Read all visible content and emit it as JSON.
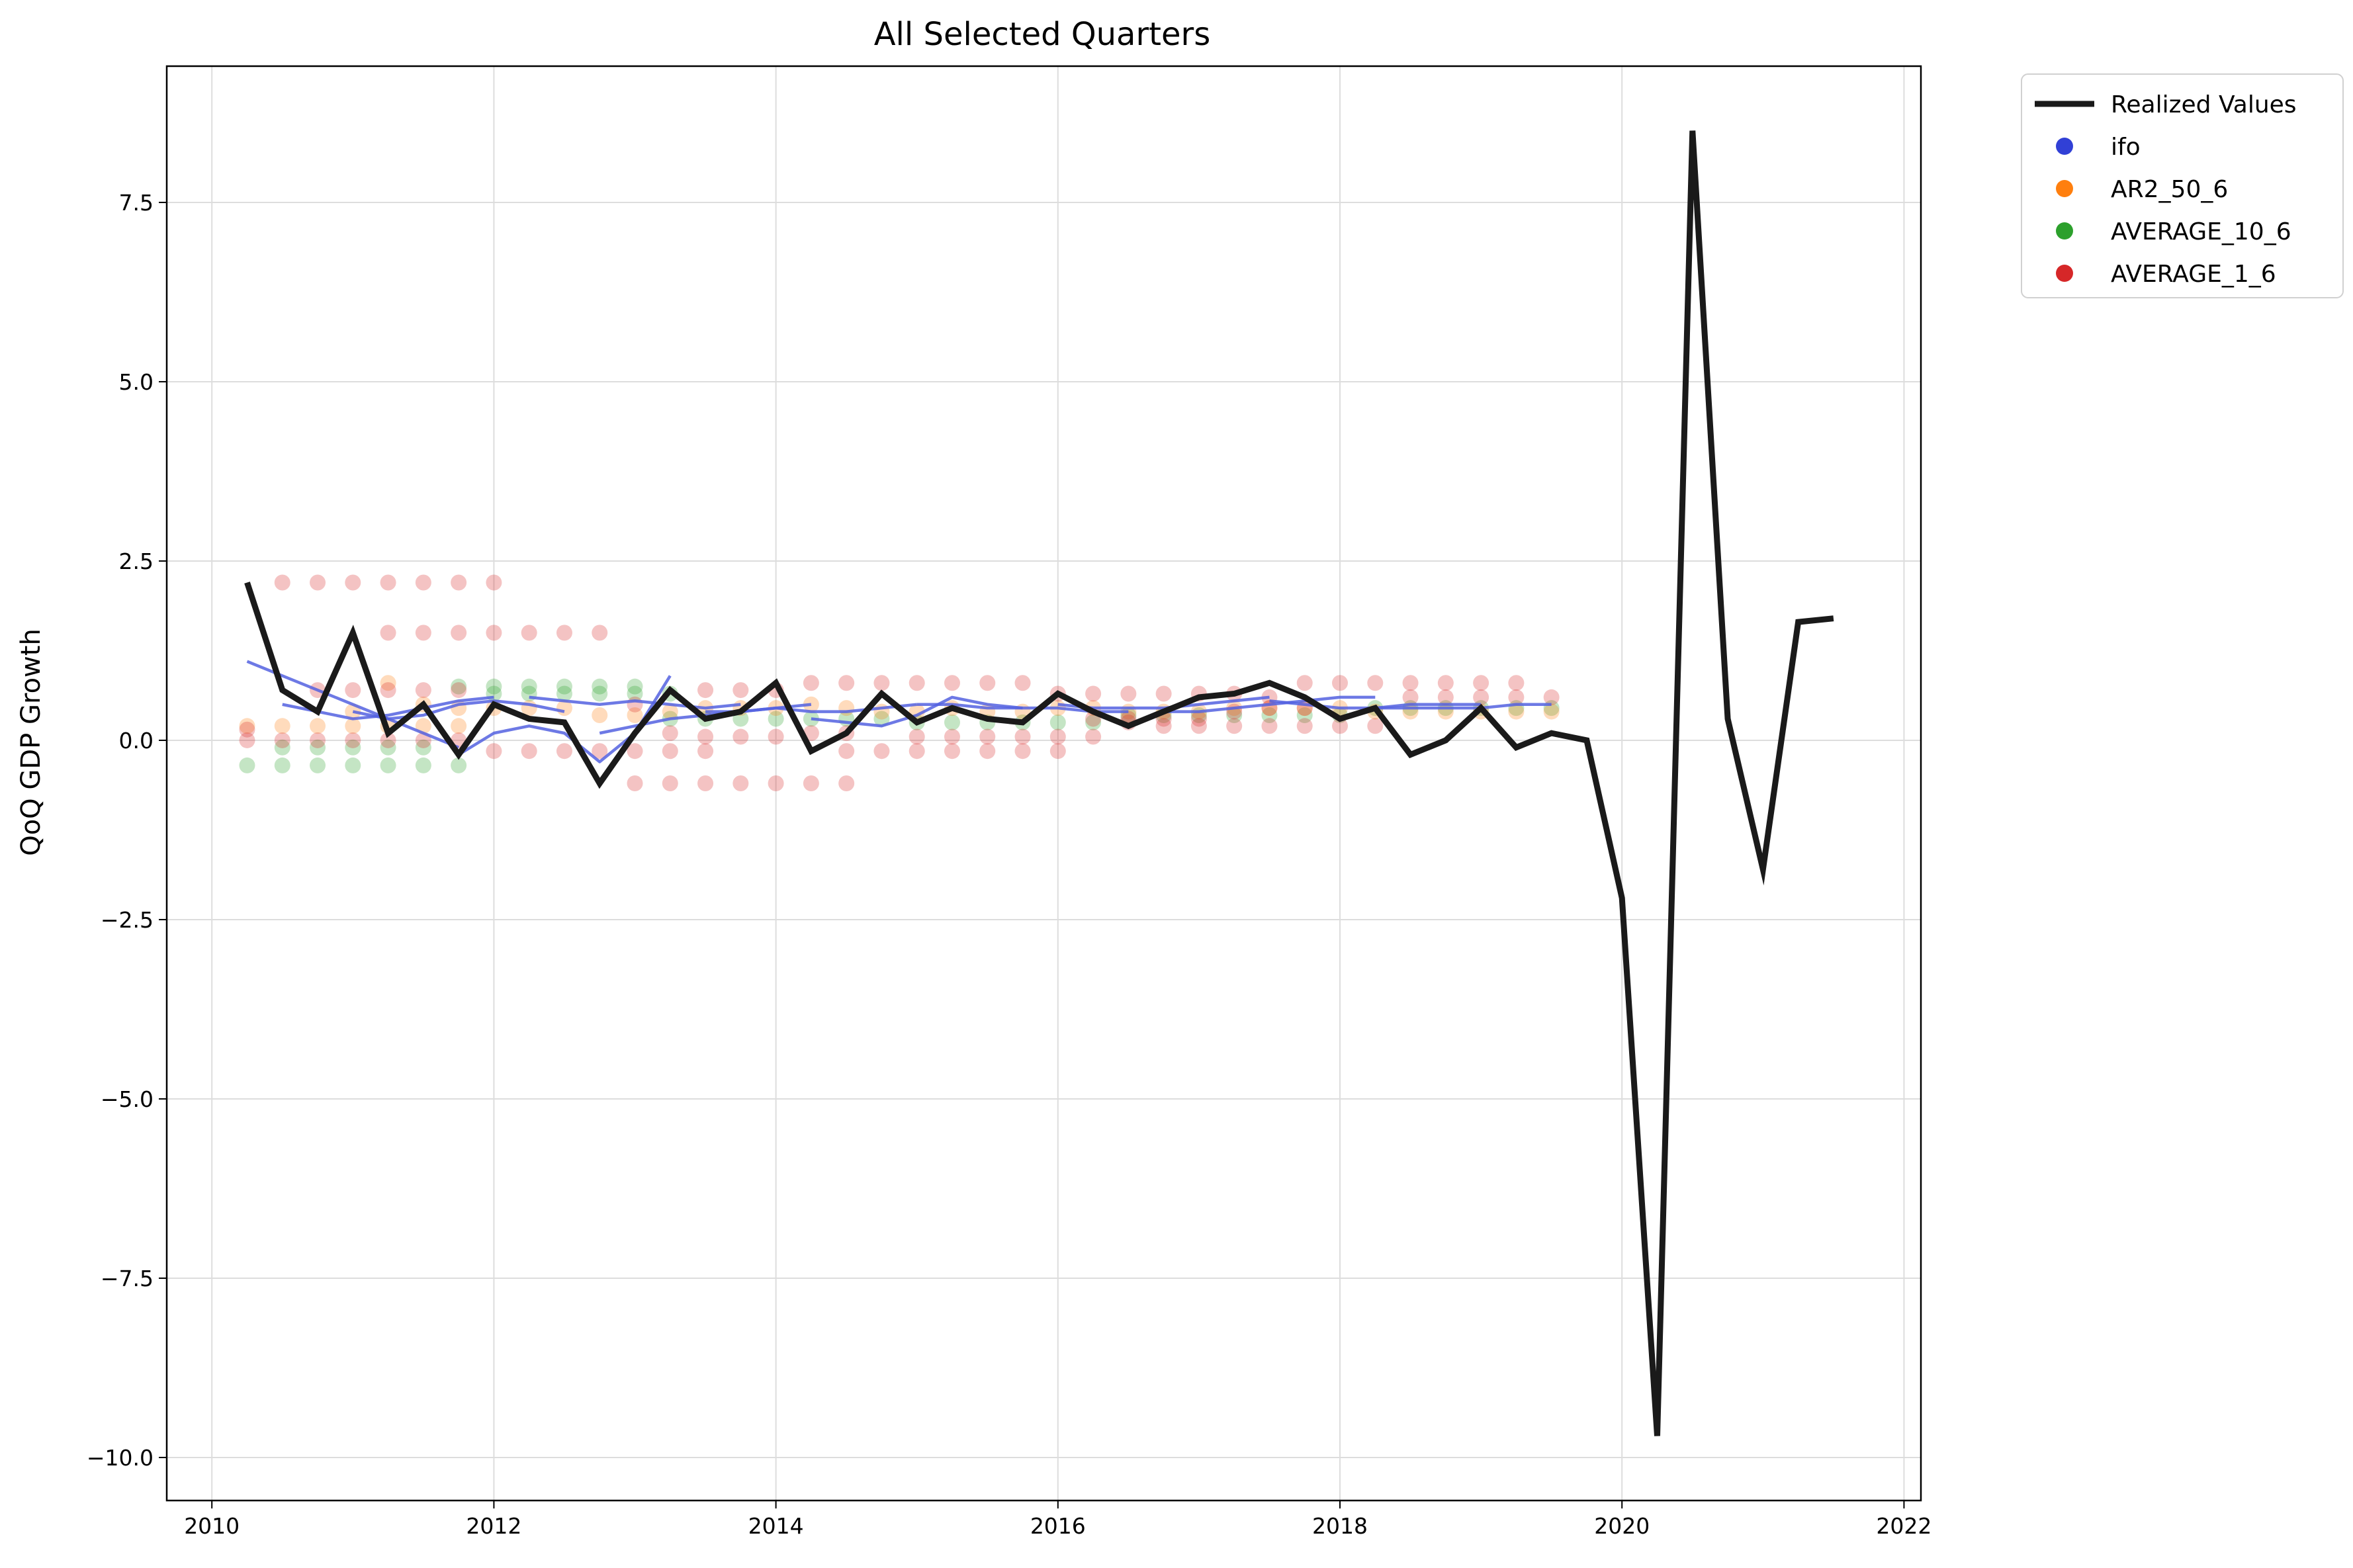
{
  "chart_data": {
    "type": "line",
    "title": "All Selected Quarters",
    "xlabel": "",
    "ylabel": "QoQ GDP Growth",
    "xlim": [
      2009.68,
      2022.12
    ],
    "ylim": [
      -10.6,
      9.4
    ],
    "x_ticks": [
      2010,
      2012,
      2014,
      2016,
      2018,
      2020,
      2022
    ],
    "y_ticks": [
      7.5,
      5.0,
      2.5,
      0.0,
      -2.5,
      -5.0,
      -7.5,
      -10.0
    ],
    "y_tick_labels": [
      "7.5",
      "5.0",
      "2.5",
      "0.0",
      "−2.5",
      "−5.0",
      "−7.5",
      "−10.0"
    ],
    "grid": true,
    "legend_position": "outside-top-right",
    "colors": {
      "realized": "#1a1a1a",
      "ifo": "#3140d6",
      "ifo_line": "#5461e0",
      "AR2_50_6": "#ff7f0e",
      "AVERAGE_10_6": "#2ca02c",
      "AVERAGE_1_6": "#d62728",
      "grid": "#dddddd"
    },
    "legend": [
      {
        "name": "Realized Values",
        "kind": "line",
        "color": "#1a1a1a"
      },
      {
        "name": "ifo",
        "kind": "marker",
        "color": "#3140d6"
      },
      {
        "name": "AR2_50_6",
        "kind": "marker",
        "color": "#ff7f0e"
      },
      {
        "name": "AVERAGE_10_6",
        "kind": "marker",
        "color": "#2ca02c"
      },
      {
        "name": "AVERAGE_1_6",
        "kind": "marker",
        "color": "#d62728"
      }
    ],
    "realized": {
      "name": "Realized Values",
      "x": [
        2010.25,
        2010.5,
        2010.75,
        2011.0,
        2011.25,
        2011.5,
        2011.75,
        2012.0,
        2012.25,
        2012.5,
        2012.75,
        2013.0,
        2013.25,
        2013.5,
        2013.75,
        2014.0,
        2014.25,
        2014.5,
        2014.75,
        2015.0,
        2015.25,
        2015.5,
        2015.75,
        2016.0,
        2016.25,
        2016.5,
        2016.75,
        2017.0,
        2017.25,
        2017.5,
        2017.75,
        2018.0,
        2018.25,
        2018.5,
        2018.75,
        2019.0,
        2019.25,
        2019.5,
        2019.75,
        2020.0,
        2020.25,
        2020.5,
        2020.75,
        2021.0,
        2021.25,
        2021.5
      ],
      "y": [
        2.2,
        0.7,
        0.4,
        1.5,
        0.1,
        0.5,
        -0.2,
        0.5,
        0.3,
        0.25,
        -0.6,
        0.1,
        0.7,
        0.3,
        0.4,
        0.8,
        -0.15,
        0.1,
        0.65,
        0.25,
        0.45,
        0.3,
        0.25,
        0.65,
        0.4,
        0.2,
        0.4,
        0.6,
        0.65,
        0.8,
        0.6,
        0.3,
        0.45,
        -0.2,
        0.0,
        0.45,
        -0.1,
        0.1,
        0.0,
        -2.2,
        -9.7,
        8.5,
        0.3,
        -1.8,
        1.65,
        1.7
      ]
    },
    "ifo_paths": [
      {
        "x": [
          2010.25,
          2010.5,
          2010.75,
          2011.0,
          2011.25,
          2011.5,
          2011.75
        ],
        "y": [
          1.1,
          0.9,
          0.7,
          0.5,
          0.3,
          0.1,
          -0.1
        ]
      },
      {
        "x": [
          2010.5,
          2010.75,
          2011.0,
          2011.25,
          2011.5,
          2011.75,
          2012.0
        ],
        "y": [
          0.5,
          0.4,
          0.3,
          0.35,
          0.45,
          0.55,
          0.6
        ]
      },
      {
        "x": [
          2011.0,
          2011.25,
          2011.5,
          2011.75,
          2012.0,
          2012.25,
          2012.5
        ],
        "y": [
          0.4,
          0.3,
          0.35,
          0.5,
          0.55,
          0.5,
          0.4
        ]
      },
      {
        "x": [
          2011.75,
          2012.0,
          2012.25,
          2012.5,
          2012.75,
          2013.0,
          2013.25
        ],
        "y": [
          -0.2,
          0.1,
          0.2,
          0.1,
          -0.3,
          0.1,
          0.9
        ]
      },
      {
        "x": [
          2012.25,
          2012.5,
          2012.75,
          2013.0,
          2013.25,
          2013.5,
          2013.75
        ],
        "y": [
          0.6,
          0.55,
          0.5,
          0.55,
          0.5,
          0.45,
          0.5
        ]
      },
      {
        "x": [
          2012.75,
          2013.0,
          2013.25,
          2013.5,
          2013.75,
          2014.0,
          2014.25
        ],
        "y": [
          0.1,
          0.2,
          0.3,
          0.35,
          0.4,
          0.45,
          0.5
        ]
      },
      {
        "x": [
          2013.5,
          2013.75,
          2014.0,
          2014.25,
          2014.5,
          2014.75,
          2015.0
        ],
        "y": [
          0.4,
          0.4,
          0.45,
          0.4,
          0.4,
          0.45,
          0.5
        ]
      },
      {
        "x": [
          2014.25,
          2014.5,
          2014.75,
          2015.0,
          2015.25,
          2015.5,
          2015.75
        ],
        "y": [
          0.3,
          0.25,
          0.2,
          0.35,
          0.6,
          0.5,
          0.45
        ]
      },
      {
        "x": [
          2015.0,
          2015.25,
          2015.5,
          2015.75,
          2016.0,
          2016.25,
          2016.5
        ],
        "y": [
          0.5,
          0.5,
          0.45,
          0.45,
          0.45,
          0.4,
          0.4
        ]
      },
      {
        "x": [
          2016.0,
          2016.25,
          2016.5,
          2016.75,
          2017.0,
          2017.25,
          2017.5
        ],
        "y": [
          0.5,
          0.45,
          0.45,
          0.45,
          0.5,
          0.55,
          0.6
        ]
      },
      {
        "x": [
          2016.75,
          2017.0,
          2017.25,
          2017.5,
          2017.75,
          2018.0,
          2018.25
        ],
        "y": [
          0.4,
          0.4,
          0.45,
          0.5,
          0.55,
          0.6,
          0.6
        ]
      },
      {
        "x": [
          2017.5,
          2017.75,
          2018.0,
          2018.25,
          2018.5,
          2018.75,
          2019.0
        ],
        "y": [
          0.55,
          0.5,
          0.45,
          0.45,
          0.5,
          0.5,
          0.5
        ]
      },
      {
        "x": [
          2018.25,
          2018.5,
          2018.75,
          2019.0,
          2019.25,
          2019.5
        ],
        "y": [
          0.45,
          0.45,
          0.45,
          0.45,
          0.5,
          0.5
        ]
      }
    ],
    "scatter_series": [
      {
        "name": "AVERAGE_10_6",
        "color": "#2ca02c",
        "points": [
          [
            2010.25,
            -0.35
          ],
          [
            2010.5,
            -0.35
          ],
          [
            2010.75,
            -0.35
          ],
          [
            2011.0,
            -0.35
          ],
          [
            2011.25,
            -0.35
          ],
          [
            2011.5,
            -0.35
          ],
          [
            2011.75,
            -0.35
          ],
          [
            2010.5,
            -0.1
          ],
          [
            2010.75,
            -0.1
          ],
          [
            2011.0,
            -0.1
          ],
          [
            2011.25,
            -0.1
          ],
          [
            2011.5,
            -0.1
          ],
          [
            2011.75,
            0.75
          ],
          [
            2012.0,
            0.75
          ],
          [
            2012.25,
            0.75
          ],
          [
            2012.5,
            0.75
          ],
          [
            2012.75,
            0.75
          ],
          [
            2013.0,
            0.75
          ],
          [
            2012.0,
            0.65
          ],
          [
            2012.25,
            0.65
          ],
          [
            2012.5,
            0.65
          ],
          [
            2012.75,
            0.65
          ],
          [
            2013.0,
            0.65
          ],
          [
            2013.25,
            0.65
          ],
          [
            2013.25,
            0.3
          ],
          [
            2013.5,
            0.3
          ],
          [
            2013.75,
            0.3
          ],
          [
            2014.0,
            0.3
          ],
          [
            2014.25,
            0.3
          ],
          [
            2014.5,
            0.3
          ],
          [
            2014.75,
            0.3
          ],
          [
            2015.0,
            0.25
          ],
          [
            2015.25,
            0.25
          ],
          [
            2015.5,
            0.25
          ],
          [
            2015.75,
            0.25
          ],
          [
            2016.0,
            0.25
          ],
          [
            2016.25,
            0.25
          ],
          [
            2016.5,
            0.35
          ],
          [
            2016.75,
            0.35
          ],
          [
            2017.0,
            0.35
          ],
          [
            2017.25,
            0.35
          ],
          [
            2017.5,
            0.35
          ],
          [
            2017.75,
            0.35
          ],
          [
            2018.0,
            0.35
          ],
          [
            2018.25,
            0.45
          ],
          [
            2018.5,
            0.45
          ],
          [
            2018.75,
            0.45
          ],
          [
            2019.0,
            0.45
          ],
          [
            2019.25,
            0.45
          ],
          [
            2019.5,
            0.45
          ]
        ]
      },
      {
        "name": "AR2_50_6",
        "color": "#ff7f0e",
        "points": [
          [
            2010.25,
            0.2
          ],
          [
            2010.5,
            0.2
          ],
          [
            2010.75,
            0.2
          ],
          [
            2011.0,
            0.2
          ],
          [
            2011.25,
            0.2
          ],
          [
            2011.5,
            0.2
          ],
          [
            2011.75,
            0.2
          ],
          [
            2011.0,
            0.4
          ],
          [
            2011.25,
            0.8
          ],
          [
            2011.5,
            0.5
          ],
          [
            2011.75,
            0.45
          ],
          [
            2012.0,
            0.45
          ],
          [
            2012.25,
            0.45
          ],
          [
            2012.5,
            0.45
          ],
          [
            2012.75,
            0.35
          ],
          [
            2013.0,
            0.35
          ],
          [
            2013.25,
            0.4
          ],
          [
            2013.5,
            0.45
          ],
          [
            2013.75,
            0.45
          ],
          [
            2014.0,
            0.45
          ],
          [
            2014.25,
            0.5
          ],
          [
            2014.5,
            0.45
          ],
          [
            2014.75,
            0.4
          ],
          [
            2015.0,
            0.4
          ],
          [
            2015.25,
            0.45
          ],
          [
            2015.5,
            0.4
          ],
          [
            2015.75,
            0.4
          ],
          [
            2016.0,
            0.45
          ],
          [
            2016.25,
            0.45
          ],
          [
            2016.5,
            0.4
          ],
          [
            2016.75,
            0.4
          ],
          [
            2017.0,
            0.4
          ],
          [
            2017.25,
            0.45
          ],
          [
            2017.5,
            0.45
          ],
          [
            2017.75,
            0.45
          ],
          [
            2018.0,
            0.45
          ],
          [
            2018.25,
            0.4
          ],
          [
            2018.5,
            0.4
          ],
          [
            2018.75,
            0.4
          ],
          [
            2019.0,
            0.4
          ],
          [
            2019.25,
            0.4
          ],
          [
            2019.5,
            0.4
          ]
        ]
      },
      {
        "name": "AVERAGE_1_6",
        "color": "#d62728",
        "points": [
          [
            2010.25,
            0.0
          ],
          [
            2010.25,
            0.15
          ],
          [
            2010.5,
            2.2
          ],
          [
            2010.75,
            2.2
          ],
          [
            2011.0,
            2.2
          ],
          [
            2011.25,
            2.2
          ],
          [
            2011.5,
            2.2
          ],
          [
            2011.75,
            2.2
          ],
          [
            2012.0,
            2.2
          ],
          [
            2010.5,
            0.0
          ],
          [
            2010.75,
            0.0
          ],
          [
            2011.0,
            0.0
          ],
          [
            2011.25,
            0.0
          ],
          [
            2011.5,
            0.0
          ],
          [
            2011.75,
            0.0
          ],
          [
            2010.75,
            0.7
          ],
          [
            2011.0,
            0.7
          ],
          [
            2011.25,
            0.7
          ],
          [
            2011.5,
            0.7
          ],
          [
            2011.75,
            0.7
          ],
          [
            2011.25,
            1.5
          ],
          [
            2011.5,
            1.5
          ],
          [
            2011.75,
            1.5
          ],
          [
            2012.0,
            1.5
          ],
          [
            2012.25,
            1.5
          ],
          [
            2012.5,
            1.5
          ],
          [
            2012.75,
            1.5
          ],
          [
            2012.0,
            -0.15
          ],
          [
            2012.25,
            -0.15
          ],
          [
            2012.5,
            -0.15
          ],
          [
            2012.75,
            -0.15
          ],
          [
            2013.0,
            -0.15
          ],
          [
            2013.25,
            -0.15
          ],
          [
            2013.5,
            -0.15
          ],
          [
            2013.0,
            -0.6
          ],
          [
            2013.25,
            -0.6
          ],
          [
            2013.5,
            -0.6
          ],
          [
            2013.75,
            -0.6
          ],
          [
            2014.0,
            -0.6
          ],
          [
            2014.25,
            -0.6
          ],
          [
            2014.5,
            -0.6
          ],
          [
            2013.0,
            0.5
          ],
          [
            2013.25,
            0.1
          ],
          [
            2013.5,
            0.05
          ],
          [
            2013.75,
            0.05
          ],
          [
            2014.0,
            0.05
          ],
          [
            2014.25,
            0.1
          ],
          [
            2014.5,
            0.1
          ],
          [
            2013.5,
            0.7
          ],
          [
            2013.75,
            0.7
          ],
          [
            2014.0,
            0.7
          ],
          [
            2014.25,
            0.8
          ],
          [
            2014.5,
            0.8
          ],
          [
            2014.75,
            0.8
          ],
          [
            2015.0,
            0.8
          ],
          [
            2015.25,
            0.8
          ],
          [
            2015.5,
            0.8
          ],
          [
            2015.75,
            0.8
          ],
          [
            2014.5,
            -0.15
          ],
          [
            2014.75,
            -0.15
          ],
          [
            2015.0,
            -0.15
          ],
          [
            2015.25,
            -0.15
          ],
          [
            2015.5,
            -0.15
          ],
          [
            2015.75,
            -0.15
          ],
          [
            2016.0,
            -0.15
          ],
          [
            2015.0,
            0.05
          ],
          [
            2015.25,
            0.05
          ],
          [
            2015.5,
            0.05
          ],
          [
            2015.75,
            0.05
          ],
          [
            2016.0,
            0.05
          ],
          [
            2016.25,
            0.05
          ],
          [
            2016.0,
            0.65
          ],
          [
            2016.25,
            0.65
          ],
          [
            2016.5,
            0.65
          ],
          [
            2016.75,
            0.65
          ],
          [
            2017.0,
            0.65
          ],
          [
            2017.25,
            0.65
          ],
          [
            2016.5,
            0.25
          ],
          [
            2016.75,
            0.2
          ],
          [
            2017.0,
            0.2
          ],
          [
            2017.25,
            0.2
          ],
          [
            2017.5,
            0.2
          ],
          [
            2017.75,
            0.2
          ],
          [
            2018.0,
            0.2
          ],
          [
            2018.25,
            0.2
          ],
          [
            2017.5,
            0.6
          ],
          [
            2017.75,
            0.8
          ],
          [
            2018.0,
            0.8
          ],
          [
            2018.25,
            0.8
          ],
          [
            2018.5,
            0.8
          ],
          [
            2018.75,
            0.8
          ],
          [
            2019.0,
            0.8
          ],
          [
            2019.25,
            0.8
          ],
          [
            2018.5,
            0.6
          ],
          [
            2018.75,
            0.6
          ],
          [
            2019.0,
            0.6
          ],
          [
            2019.25,
            0.6
          ],
          [
            2019.5,
            0.6
          ],
          [
            2016.25,
            0.3
          ],
          [
            2016.5,
            0.3
          ],
          [
            2016.75,
            0.3
          ],
          [
            2017.0,
            0.3
          ],
          [
            2017.25,
            0.4
          ],
          [
            2017.5,
            0.45
          ],
          [
            2017.75,
            0.45
          ]
        ]
      }
    ]
  }
}
